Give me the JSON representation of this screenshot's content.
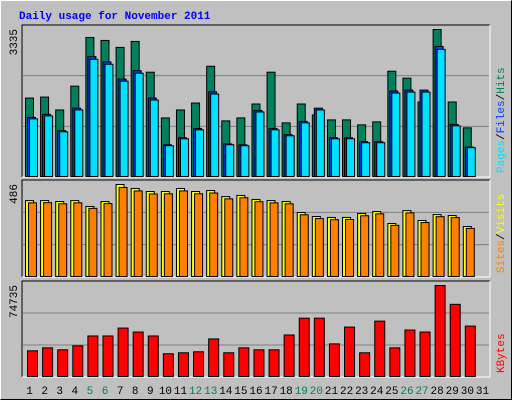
{
  "chart_data": [
    {
      "type": "bar",
      "title": "Daily usage for November 2011",
      "ylim": [
        0,
        3335
      ],
      "yticks": [
        3335
      ],
      "grid": true,
      "legend_separator": "/",
      "series": [
        {
          "name": "Hits",
          "color": "#00805c",
          "values": [
            1780,
            1802,
            1510,
            2050,
            3154,
            3087,
            2929,
            3064,
            2366,
            1329,
            1510,
            1667,
            2501,
            1262,
            1329,
            1645,
            2366,
            1217,
            1645,
            1397,
            1284,
            1284,
            1172,
            1239,
            2388,
            2231,
            1690,
            3335,
            1690,
            1104,
            null
          ]
        },
        {
          "name": "Files",
          "color": "#0040ff",
          "values": [
            1340,
            1410,
            1040,
            1550,
            2720,
            2600,
            2210,
            2400,
            1780,
            720,
            880,
            1090,
            1920,
            740,
            720,
            1500,
            1090,
            950,
            1250,
            1550,
            880,
            880,
            790,
            790,
            1938,
            1960,
            1960,
            2951,
            1180,
            670,
            null
          ]
        },
        {
          "name": "Pages",
          "color": "#00e0ff",
          "values": [
            1307,
            1374,
            1014,
            1510,
            2659,
            2546,
            2163,
            2343,
            1735,
            698,
            856,
            1059,
            1870,
            721,
            698,
            1464,
            1059,
            924,
            1217,
            1510,
            856,
            856,
            766,
            766,
            1893,
            1915,
            1915,
            2884,
            1149,
            653,
            null
          ]
        }
      ]
    },
    {
      "type": "bar",
      "ylim": [
        0,
        486
      ],
      "yticks": [
        486
      ],
      "grid": true,
      "legend_separator": "/",
      "series": [
        {
          "name": "Visits",
          "color": "#ffff00",
          "values": [
            401,
            401,
            396,
            401,
            370,
            396,
            486,
            465,
            449,
            449,
            465,
            449,
            454,
            422,
            428,
            407,
            401,
            396,
            338,
            317,
            312,
            312,
            333,
            343,
            280,
            348,
            296,
            327,
            322,
            264,
            null
          ]
        },
        {
          "name": "Sites",
          "color": "#ff8000",
          "values": [
            389,
            390,
            384,
            389,
            360,
            385,
            470,
            452,
            436,
            437,
            452,
            437,
            441,
            410,
            416,
            395,
            389,
            384,
            326,
            306,
            300,
            301,
            321,
            331,
            270,
            336,
            285,
            316,
            311,
            254,
            null
          ]
        }
      ]
    },
    {
      "type": "bar",
      "ylim": [
        0,
        74735
      ],
      "yticks": [
        74735
      ],
      "grid": true,
      "series": [
        {
          "name": "KBytes",
          "color": "#ff0000",
          "values": [
            21112,
            23548,
            21924,
            25172,
            33292,
            33292,
            39788,
            36540,
            33292,
            18676,
            19488,
            20300,
            30856,
            19488,
            23548,
            21924,
            21924,
            34104,
            47908,
            47908,
            26796,
            40600,
            19488,
            45472,
            23548,
            38164,
            36540,
            74735,
            59276,
            41412,
            null
          ]
        }
      ],
      "categories": [
        "1",
        "2",
        "3",
        "4",
        "5",
        "6",
        "7",
        "8",
        "9",
        "10",
        "11",
        "12",
        "13",
        "14",
        "15",
        "16",
        "17",
        "18",
        "19",
        "20",
        "21",
        "22",
        "23",
        "24",
        "25",
        "26",
        "27",
        "28",
        "29",
        "30",
        "31"
      ],
      "category_colors": [
        "#000000",
        "#000000",
        "#000000",
        "#000000",
        "#00805c",
        "#00805c",
        "#000000",
        "#000000",
        "#000000",
        "#000000",
        "#000000",
        "#00805c",
        "#00805c",
        "#000000",
        "#000000",
        "#000000",
        "#000000",
        "#000000",
        "#00805c",
        "#00805c",
        "#000000",
        "#000000",
        "#000000",
        "#000000",
        "#000000",
        "#00805c",
        "#00805c",
        "#000000",
        "#000000",
        "#000000",
        "#000000"
      ]
    }
  ]
}
